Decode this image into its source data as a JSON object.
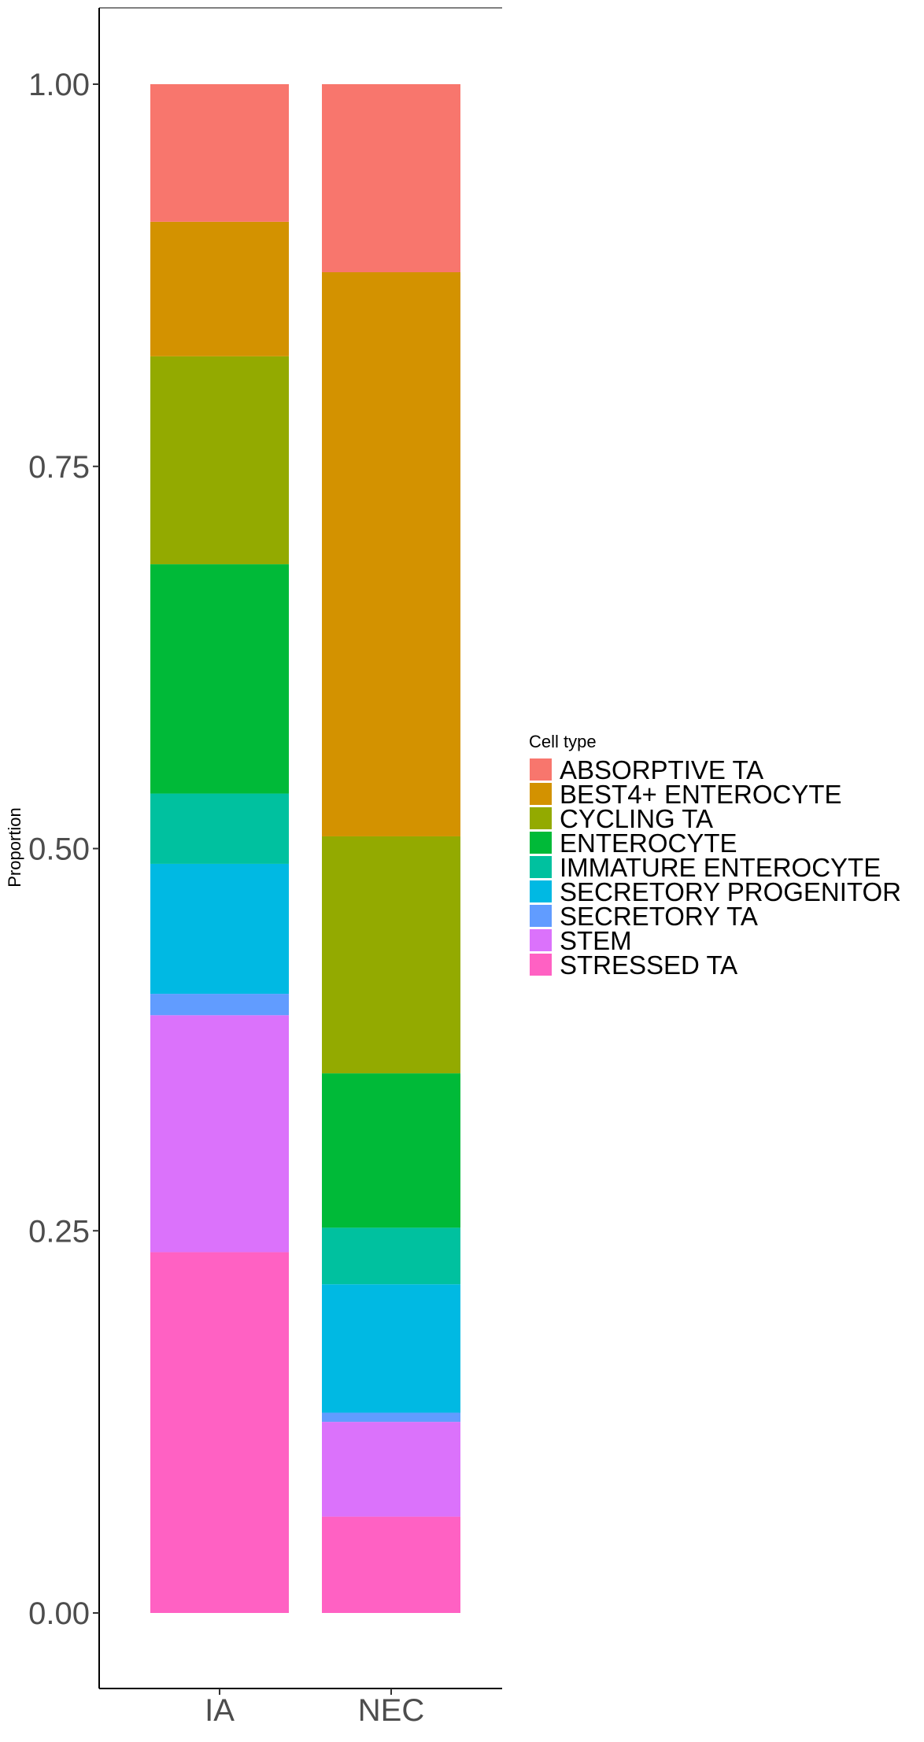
{
  "chart_data": {
    "type": "bar",
    "stacked": true,
    "title": "",
    "xlabel": "",
    "ylabel": "Proportion",
    "ylim": [
      0,
      1
    ],
    "y_ticks": [
      "0.00",
      "0.25",
      "0.50",
      "0.75",
      "1.00"
    ],
    "categories": [
      "IA",
      "NEC"
    ],
    "grid": false,
    "legend": {
      "title": "Cell type",
      "placement": "right"
    },
    "series": [
      {
        "name": "STRESSED TA",
        "color": "#FF61C3",
        "values": [
          0.236,
          0.063
        ]
      },
      {
        "name": "STEM",
        "color": "#DB72FB",
        "values": [
          0.155,
          0.062
        ]
      },
      {
        "name": "SECRETORY TA",
        "color": "#619CFF",
        "values": [
          0.014,
          0.006
        ]
      },
      {
        "name": "SECRETORY PROGENITOR",
        "color": "#00B9E3",
        "values": [
          0.085,
          0.084
        ]
      },
      {
        "name": "IMMATURE ENTEROCYTE",
        "color": "#00C19F",
        "values": [
          0.046,
          0.037
        ]
      },
      {
        "name": "ENTEROCYTE",
        "color": "#00BA38",
        "values": [
          0.15,
          0.101
        ]
      },
      {
        "name": "CYCLING TA",
        "color": "#93AA00",
        "values": [
          0.136,
          0.155
        ]
      },
      {
        "name": "BEST4+ ENTEROCYTE",
        "color": "#D39200",
        "values": [
          0.088,
          0.369
        ]
      },
      {
        "name": "ABSORPTIVE TA",
        "color": "#F8766D",
        "values": [
          0.09,
          0.123
        ]
      }
    ]
  }
}
